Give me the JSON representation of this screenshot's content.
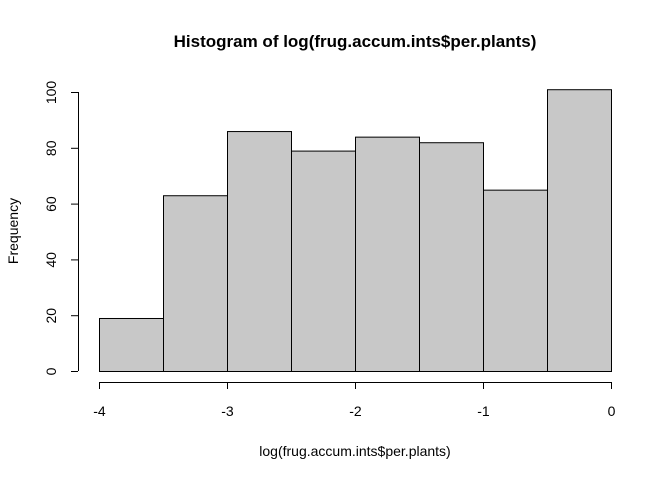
{
  "chart_data": {
    "type": "bar",
    "title": "Histogram of log(frug.accum.ints$per.plants)",
    "xlabel": "log(frug.accum.ints$per.plants)",
    "ylabel": "Frequency",
    "bins": [
      {
        "start": -4.0,
        "end": -3.5,
        "count": 19
      },
      {
        "start": -3.5,
        "end": -3.0,
        "count": 63
      },
      {
        "start": -3.0,
        "end": -2.5,
        "count": 86
      },
      {
        "start": -2.5,
        "end": -2.0,
        "count": 79
      },
      {
        "start": -2.0,
        "end": -1.5,
        "count": 84
      },
      {
        "start": -1.5,
        "end": -1.0,
        "count": 82
      },
      {
        "start": -1.0,
        "end": -0.5,
        "count": 65
      },
      {
        "start": -0.5,
        "end": 0.0,
        "count": 101
      }
    ],
    "xlim": [
      -4,
      0
    ],
    "ylim": [
      0,
      100
    ],
    "x_ticks": [
      -4,
      -3,
      -2,
      -1,
      0
    ],
    "x_tick_labels": [
      "-4",
      "-3",
      "-2",
      "-1",
      "0"
    ],
    "y_ticks": [
      0,
      20,
      40,
      60,
      80,
      100
    ],
    "y_tick_labels": [
      "0",
      "20",
      "40",
      "60",
      "80",
      "100"
    ],
    "bar_color": "#c8c8c8",
    "edge_color": "#000000",
    "grid": false
  }
}
